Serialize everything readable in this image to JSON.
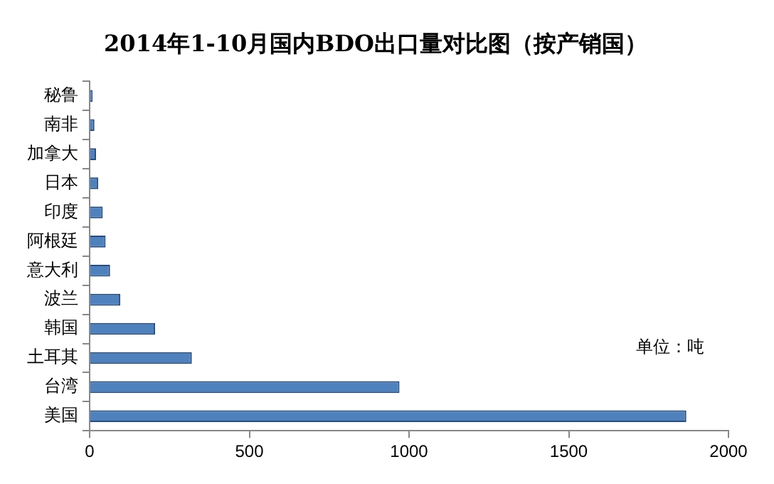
{
  "chart_data": {
    "type": "bar",
    "orientation": "horizontal",
    "title": "2014年1-10月国内BDO出口量对比图（按产销国）",
    "categories": [
      "秘鲁",
      "南非",
      "加拿大",
      "日本",
      "印度",
      "阿根廷",
      "意大利",
      "波兰",
      "韩国",
      "土耳其",
      "台湾",
      "美国"
    ],
    "values": [
      9,
      15,
      20,
      27,
      41,
      50,
      64,
      96,
      205,
      320,
      970,
      1868
    ],
    "color": "#4f81bd",
    "xlim": [
      0,
      2000
    ],
    "xticks": [
      0,
      500,
      1000,
      1500,
      2000
    ],
    "grid": false,
    "legend": false,
    "annotations": [
      "单位：吨"
    ]
  }
}
